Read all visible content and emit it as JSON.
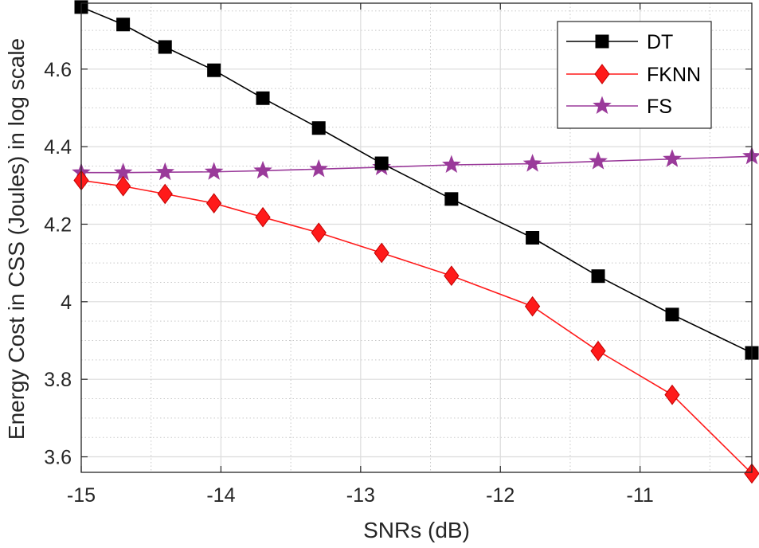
{
  "chart_data": {
    "type": "line",
    "title": "",
    "xlabel": "SNRs (dB)",
    "ylabel": "Energy Cost in CSS (Joules) in log scale",
    "xlim": [
      -15,
      -10.2
    ],
    "ylim": [
      3.56,
      4.77
    ],
    "x_ticks": [
      -15,
      -14,
      -13,
      -12,
      -11
    ],
    "x_tick_labels": [
      "-15",
      "-14",
      "-13",
      "-12",
      "-11"
    ],
    "y_ticks": [
      3.6,
      3.8,
      4,
      4.2,
      4.4,
      4.6
    ],
    "y_tick_labels": [
      "3.6",
      "3.8",
      "4",
      "4.2",
      "4.4",
      "4.6"
    ],
    "y_minor_ticks": [
      3.65,
      3.7,
      3.75,
      3.85,
      3.9,
      3.95,
      4.05,
      4.1,
      4.15,
      4.25,
      4.3,
      4.35,
      4.45,
      4.5,
      4.55,
      4.65,
      4.7,
      4.75
    ],
    "grid": true,
    "legend_position": "top-right",
    "x": [
      -15,
      -14.7,
      -14.4,
      -14.05,
      -13.7,
      -13.3,
      -12.85,
      -12.35,
      -11.77,
      -11.3,
      -10.77,
      -10.2
    ],
    "series": [
      {
        "name": "DT",
        "color": "#000000",
        "marker": "square",
        "values": [
          4.76,
          4.715,
          4.657,
          4.597,
          4.525,
          4.448,
          4.357,
          4.265,
          4.165,
          4.066,
          3.967,
          3.868
        ]
      },
      {
        "name": "FKNN",
        "color": "#ff1a1a",
        "marker": "diamond",
        "values": [
          4.313,
          4.298,
          4.278,
          4.254,
          4.218,
          4.178,
          4.126,
          4.067,
          3.988,
          3.873,
          3.76,
          3.557
        ]
      },
      {
        "name": "FS",
        "color": "#9a3a9a",
        "marker": "star",
        "values": [
          4.333,
          4.333,
          4.334,
          4.335,
          4.338,
          4.342,
          4.347,
          4.353,
          4.356,
          4.362,
          4.368,
          4.375
        ]
      }
    ]
  }
}
